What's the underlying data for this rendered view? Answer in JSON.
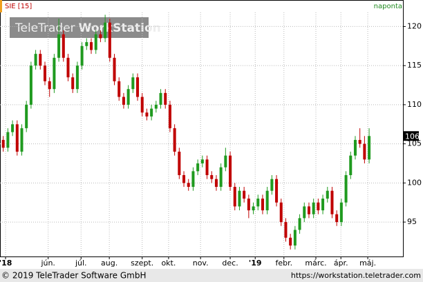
{
  "chart_data": {
    "type": "candlestick",
    "title": "SIE [15]",
    "subtitle": "naponta",
    "watermark": [
      "TeleTrader",
      "WorkStation"
    ],
    "footer_left": "© 2019 TeleTrader Software GmbH",
    "footer_right": "https://workstation.teletrader.com",
    "up_color": "#1f9a1f",
    "down_color": "#c00000",
    "open": [
      105.5,
      104.5,
      106.5,
      107.5,
      104,
      107,
      110,
      115,
      116.5,
      115,
      113,
      112,
      116,
      119,
      116,
      113.5,
      112,
      115,
      117.5,
      118,
      117,
      119,
      118.5,
      120.5,
      116,
      113,
      111,
      110,
      112,
      113.5,
      111,
      109,
      108.5,
      109.5,
      110,
      111.5,
      110,
      107,
      104,
      101,
      100,
      99.5,
      101.5,
      102.5,
      103,
      101,
      100.5,
      99.5,
      102,
      103.5,
      99.5,
      97,
      99,
      98,
      96.5,
      97,
      98,
      96.5,
      99,
      100.5,
      97.5,
      95,
      93,
      92,
      94,
      95.5,
      97,
      96,
      97.5,
      96.5,
      98,
      99,
      96,
      95,
      97.5,
      101,
      103.5,
      105.5,
      105,
      103
    ],
    "high": [
      106,
      107,
      108,
      108,
      107.5,
      110.5,
      115.5,
      117,
      117,
      115.5,
      113.5,
      116.5,
      121,
      119.5,
      116.5,
      114,
      115.5,
      118,
      118.5,
      118.5,
      119.5,
      119.5,
      121.5,
      121,
      116.5,
      113.5,
      111.5,
      112.5,
      114,
      114,
      111.5,
      109.5,
      110,
      110.5,
      112,
      112,
      110.5,
      107.5,
      104.5,
      101.5,
      100.5,
      102,
      103,
      103.5,
      103.5,
      101.5,
      101,
      102.5,
      104.5,
      104,
      100,
      99.5,
      99.5,
      98.5,
      97.5,
      98.5,
      98.5,
      99.5,
      101,
      101,
      98,
      95.5,
      93.5,
      94.5,
      96,
      97.5,
      97.5,
      98,
      98,
      98.5,
      99.5,
      99.5,
      96.5,
      98,
      101.5,
      104,
      106,
      107,
      106,
      107
    ],
    "low": [
      104,
      104,
      106,
      103.5,
      103.5,
      106.5,
      109.5,
      114.5,
      114.5,
      112.5,
      111,
      111.5,
      115.5,
      115.5,
      113,
      111.5,
      111.5,
      114.5,
      117,
      116.5,
      116.5,
      118,
      118,
      115.5,
      112.5,
      110.5,
      109.5,
      109.5,
      111.5,
      110.5,
      108.5,
      108,
      108,
      109,
      109.5,
      109.5,
      106.5,
      103.5,
      100.5,
      99.5,
      99,
      99,
      101,
      102,
      100.5,
      100,
      99,
      99,
      101.5,
      99,
      96.5,
      96.5,
      97.5,
      95.5,
      96,
      96.5,
      96,
      96,
      98.5,
      97,
      94.5,
      92.5,
      91.5,
      91.5,
      93.5,
      95,
      95.5,
      95.5,
      96,
      96,
      97.5,
      95.5,
      94.5,
      94.5,
      97,
      100.5,
      103,
      104.5,
      102.5,
      102.5
    ],
    "close": [
      104.5,
      106.5,
      107.5,
      104,
      107,
      110,
      115,
      116.5,
      115,
      113,
      112,
      116,
      119,
      116,
      113.5,
      112,
      115,
      117.5,
      118,
      117,
      119,
      118.5,
      120.5,
      116,
      113,
      111,
      110,
      112,
      113.5,
      111,
      109,
      108.5,
      109.5,
      110,
      111.5,
      110,
      107,
      104,
      101,
      100,
      99.5,
      101.5,
      102.5,
      103,
      101,
      100.5,
      99.5,
      102,
      103.5,
      99.5,
      97,
      99,
      98,
      96.5,
      97,
      98,
      96.5,
      99,
      100.5,
      97.5,
      95,
      93,
      92,
      94,
      95.5,
      97,
      96,
      97.5,
      96.5,
      98,
      99,
      96,
      95,
      97.5,
      101,
      103.5,
      105.5,
      105,
      103,
      106
    ],
    "last_value": 106,
    "xlim": [
      -0.7,
      86.3
    ],
    "xticks": [
      {
        "value": 0.5,
        "label": "'18"
      },
      {
        "value": 9.7,
        "label": "jún."
      },
      {
        "value": 16.8,
        "label": "júl."
      },
      {
        "value": 22.9,
        "label": "aug."
      },
      {
        "value": 30,
        "label": "szept."
      },
      {
        "value": 35.7,
        "label": "okt."
      },
      {
        "value": 42.6,
        "label": "nov."
      },
      {
        "value": 49,
        "label": "dec."
      },
      {
        "value": 54.4,
        "label": "'19"
      },
      {
        "value": 60.6,
        "label": "febr."
      },
      {
        "value": 67.5,
        "label": "márc."
      },
      {
        "value": 72.9,
        "label": "ápr."
      },
      {
        "value": 78.7,
        "label": "máj."
      }
    ],
    "ylim": [
      90.6,
      121.8
    ],
    "yticks": [
      95,
      100,
      105,
      110,
      115,
      120
    ],
    "grid": true
  }
}
